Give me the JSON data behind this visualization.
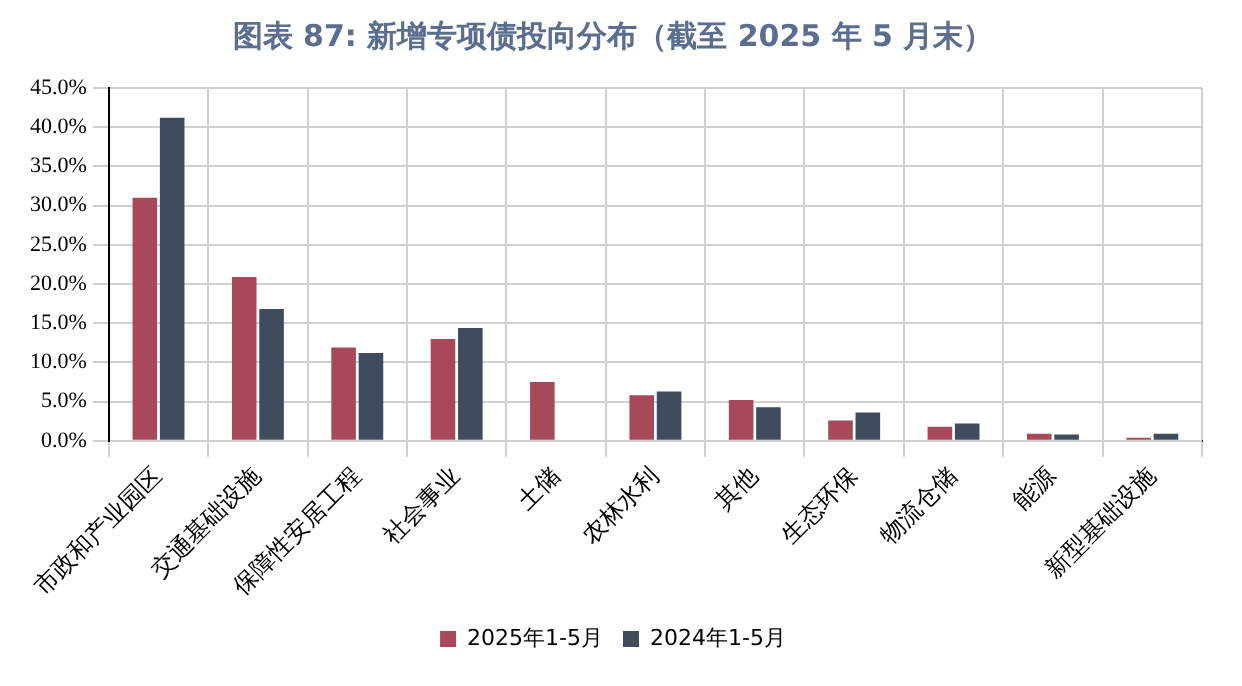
{
  "chart_data": {
    "type": "bar",
    "title": "图表 87: 新增专项债投向分布（截至 2025 年 5 月末）",
    "categories": [
      "市政和产业园区",
      "交通基础设施",
      "保障性安居工程",
      "社会事业",
      "土储",
      "农林水利",
      "其他",
      "生态环保",
      "物流仓储",
      "能源",
      "新型基础设施"
    ],
    "series": [
      {
        "name": "2025年1-5月",
        "color": "#a8495a",
        "values": [
          31.0,
          20.9,
          11.9,
          13.0,
          7.5,
          5.8,
          5.2,
          2.6,
          1.8,
          0.9,
          0.4
        ]
      },
      {
        "name": "2024年1-5月",
        "color": "#3e4c5e",
        "values": [
          41.2,
          16.8,
          11.2,
          14.4,
          null,
          6.3,
          4.3,
          3.6,
          2.2,
          0.8,
          0.9
        ]
      }
    ],
    "ylim": [
      0,
      45
    ],
    "yticks": [
      {
        "value": 0,
        "label": "0.0%"
      },
      {
        "value": 5,
        "label": "5.0%"
      },
      {
        "value": 10,
        "label": "10.0%"
      },
      {
        "value": 15,
        "label": "15.0%"
      },
      {
        "value": 20,
        "label": "20.0%"
      },
      {
        "value": 25,
        "label": "25.0%"
      },
      {
        "value": 30,
        "label": "30.0%"
      },
      {
        "value": 35,
        "label": "35.0%"
      },
      {
        "value": 40,
        "label": "40.0%"
      },
      {
        "value": 45,
        "label": "45.0%"
      }
    ],
    "grid": true,
    "legend": "bottom"
  }
}
